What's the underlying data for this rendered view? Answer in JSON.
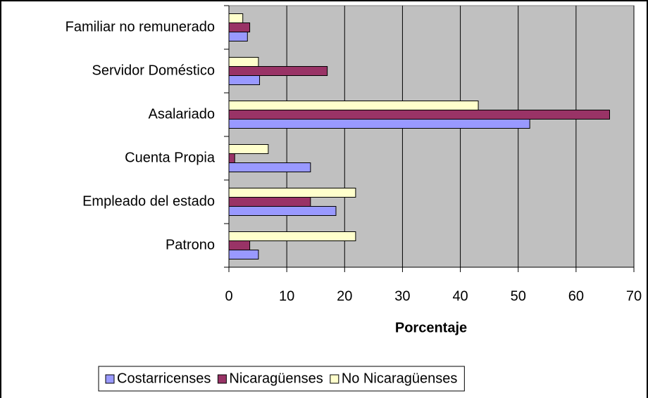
{
  "chart_data": {
    "type": "bar",
    "orientation": "horizontal",
    "categories": [
      "Familiar no remunerado",
      "Servidor Doméstico",
      "Asalariado",
      "Cuenta Propia",
      "Empleado del estado",
      "Patrono"
    ],
    "series": [
      {
        "name": "Costarricenses",
        "color": "#9999ff",
        "values": [
          3.2,
          5.3,
          52,
          14.1,
          18.5,
          5.1
        ]
      },
      {
        "name": "Nicaragüenses",
        "color": "#993366",
        "values": [
          3.6,
          17,
          65.8,
          1,
          14.1,
          3.6
        ]
      },
      {
        "name": "No Nicaragüenses",
        "color": "#ffffcc",
        "values": [
          2.4,
          5.1,
          43.1,
          6.8,
          21.9,
          21.9
        ]
      }
    ],
    "x_label": "Porcentaje",
    "xlim": [
      0,
      70
    ],
    "xticks": [
      0,
      10,
      20,
      30,
      40,
      50,
      60,
      70
    ],
    "grid": true,
    "legend": "bottom"
  }
}
